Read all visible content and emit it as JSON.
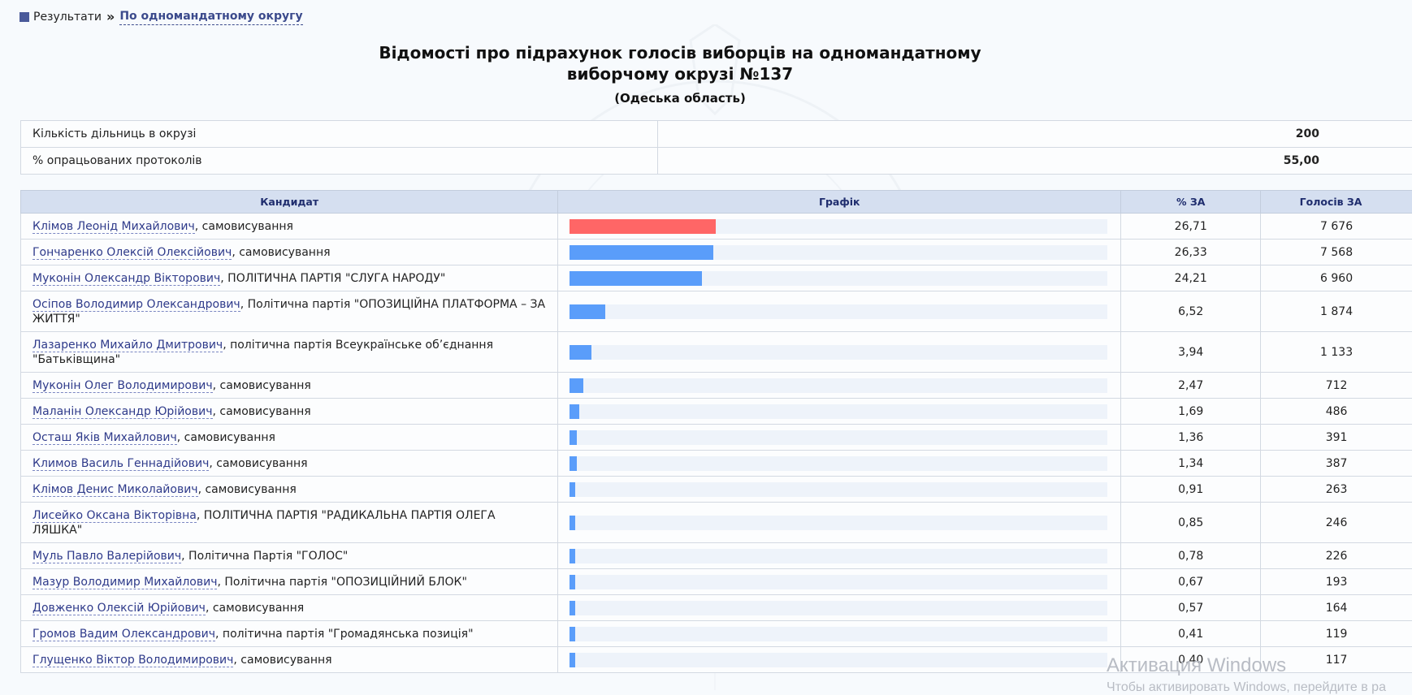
{
  "breadcrumb": {
    "root_label": "Результати",
    "current_label": "По одномандатному округу"
  },
  "heading": {
    "title_line1": "Відомості про підрахунок голосів виборців на одномандатному",
    "title_line2": "виборчому окрузі №137",
    "subtitle": "(Одеська область)"
  },
  "summary": [
    {
      "label": "Кількість дільниць в окрузі",
      "value": "200"
    },
    {
      "label": "% опрацьованих протоколів",
      "value": "55,00"
    }
  ],
  "columns": {
    "candidate": "Кандидат",
    "graph": "Графік",
    "percent": "% ЗА",
    "votes": "Голосів ЗА"
  },
  "candidates": [
    {
      "name": "Клімов Леонід Михайлович",
      "party": ", самовисування",
      "percent": "26,71",
      "pct_value": 26.71,
      "votes": "7 676"
    },
    {
      "name": "Гончаренко Олексій Олексійович",
      "party": ", самовисування",
      "percent": "26,33",
      "pct_value": 26.33,
      "votes": "7 568"
    },
    {
      "name": "Муконін Олександр Вікторович",
      "party": ", ПОЛІТИЧНА ПАРТІЯ \"СЛУГА НАРОДУ\"",
      "percent": "24,21",
      "pct_value": 24.21,
      "votes": "6 960"
    },
    {
      "name": "Осіпов Володимир Олександрович",
      "party": ", Політична партія \"ОПОЗИЦІЙНА ПЛАТФОРМА – ЗА ЖИТТЯ\"",
      "percent": "6,52",
      "pct_value": 6.52,
      "votes": "1 874"
    },
    {
      "name": "Лазаренко Михайло Дмитрович",
      "party": ", політична партія Всеукраїнське об’єднання \"Батьківщина\"",
      "percent": "3,94",
      "pct_value": 3.94,
      "votes": "1 133"
    },
    {
      "name": "Муконін Олег Володимирович",
      "party": ", самовисування",
      "percent": "2,47",
      "pct_value": 2.47,
      "votes": "712"
    },
    {
      "name": "Маланін Олександр Юрійович",
      "party": ", самовисування",
      "percent": "1,69",
      "pct_value": 1.69,
      "votes": "486"
    },
    {
      "name": "Осташ Яків Михайлович",
      "party": ", самовисування",
      "percent": "1,36",
      "pct_value": 1.36,
      "votes": "391"
    },
    {
      "name": "Климов Василь Геннадійович",
      "party": ", самовисування",
      "percent": "1,34",
      "pct_value": 1.34,
      "votes": "387"
    },
    {
      "name": "Клімов Денис Миколайович",
      "party": ", самовисування",
      "percent": "0,91",
      "pct_value": 0.91,
      "votes": "263"
    },
    {
      "name": "Лисейко Оксана Вікторівна",
      "party": ", ПОЛІТИЧНА ПАРТІЯ \"РАДИКАЛЬНА ПАРТІЯ ОЛЕГА ЛЯШКА\"",
      "percent": "0,85",
      "pct_value": 0.85,
      "votes": "246"
    },
    {
      "name": "Муль Павло Валерійович",
      "party": ", Політична Партія \"ГОЛОС\"",
      "percent": "0,78",
      "pct_value": 0.78,
      "votes": "226"
    },
    {
      "name": "Мазур Володимир Михайлович",
      "party": ", Політична партія \"ОПОЗИЦІЙНИЙ БЛОК\"",
      "percent": "0,67",
      "pct_value": 0.67,
      "votes": "193"
    },
    {
      "name": "Довженко Олексій Юрійович",
      "party": ", самовисування",
      "percent": "0,57",
      "pct_value": 0.57,
      "votes": "164"
    },
    {
      "name": "Громов Вадим Олександрович",
      "party": ", політична партія \"Громадянська позиція\"",
      "percent": "0,41",
      "pct_value": 0.41,
      "votes": "119"
    },
    {
      "name": "Глущенко Віктор Володимирович",
      "party": ", самовисування",
      "percent": "0,40",
      "pct_value": 0.4,
      "votes": "117"
    }
  ],
  "colors": {
    "leader_bar": "#ff6666",
    "bar": "#5a9dfa",
    "header_bg": "#d5dff0",
    "link": "#2e3a8a"
  },
  "watermark": {
    "line1": "Активация Windows",
    "line2": "Чтобы активировать Windows, перейдите в ра"
  }
}
